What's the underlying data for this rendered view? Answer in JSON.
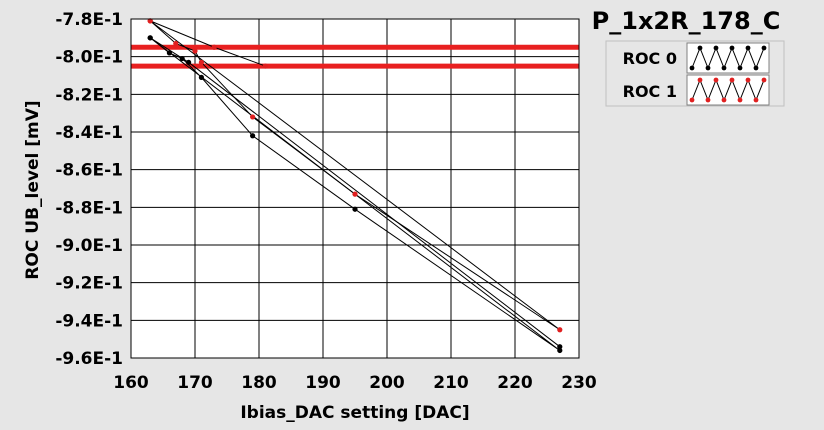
{
  "chart_data": {
    "type": "line",
    "title": "P_1x2R_178_C",
    "xlabel": "Ibias_DAC setting [DAC]",
    "ylabel": "ROC UB_level [mV]",
    "xlim": [
      160,
      230
    ],
    "ylim": [
      -0.96,
      -0.78
    ],
    "x_ticks": [
      160,
      170,
      180,
      190,
      200,
      210,
      220,
      230
    ],
    "x_tick_labels": [
      "160",
      "170",
      "180",
      "190",
      "200",
      "210",
      "220",
      "230"
    ],
    "y_ticks": [
      -0.78,
      -0.8,
      -0.82,
      -0.84,
      -0.86,
      -0.88,
      -0.9,
      -0.92,
      -0.94,
      -0.96
    ],
    "y_tick_labels": [
      "-7.8E-1",
      "-8.0E-1",
      "-8.2E-1",
      "-8.4E-1",
      "-8.6E-1",
      "-8.8E-1",
      "-9.0E-1",
      "-9.2E-1",
      "-9.4E-1",
      "-9.6E-1"
    ],
    "grid": true,
    "legend_position": "top-right",
    "series": [
      {
        "name": "ROC 0",
        "color": "#000000",
        "points": [
          [
            163,
            -0.79
          ],
          [
            166,
            -0.798
          ],
          [
            168,
            -0.801
          ],
          [
            171,
            -0.811
          ],
          [
            179,
            -0.842
          ],
          [
            195,
            -0.881
          ],
          [
            227,
            -0.956
          ],
          [
            163,
            -0.79
          ],
          [
            169,
            -0.803
          ],
          [
            227,
            -0.954
          ]
        ]
      },
      {
        "name": "ROC 1",
        "color": "#e02020",
        "points": [
          [
            163,
            -0.781
          ],
          [
            167,
            -0.793
          ],
          [
            170,
            -0.797
          ],
          [
            171,
            -0.803
          ],
          [
            179,
            -0.832
          ],
          [
            195,
            -0.873
          ],
          [
            227,
            -0.945
          ],
          [
            163,
            -0.781
          ],
          [
            173,
            -0.795
          ],
          [
            181,
            -0.805
          ]
        ]
      }
    ],
    "reference_lines": [
      {
        "y": -0.795,
        "color": "#e82020"
      },
      {
        "y": -0.805,
        "color": "#e82020"
      }
    ]
  }
}
